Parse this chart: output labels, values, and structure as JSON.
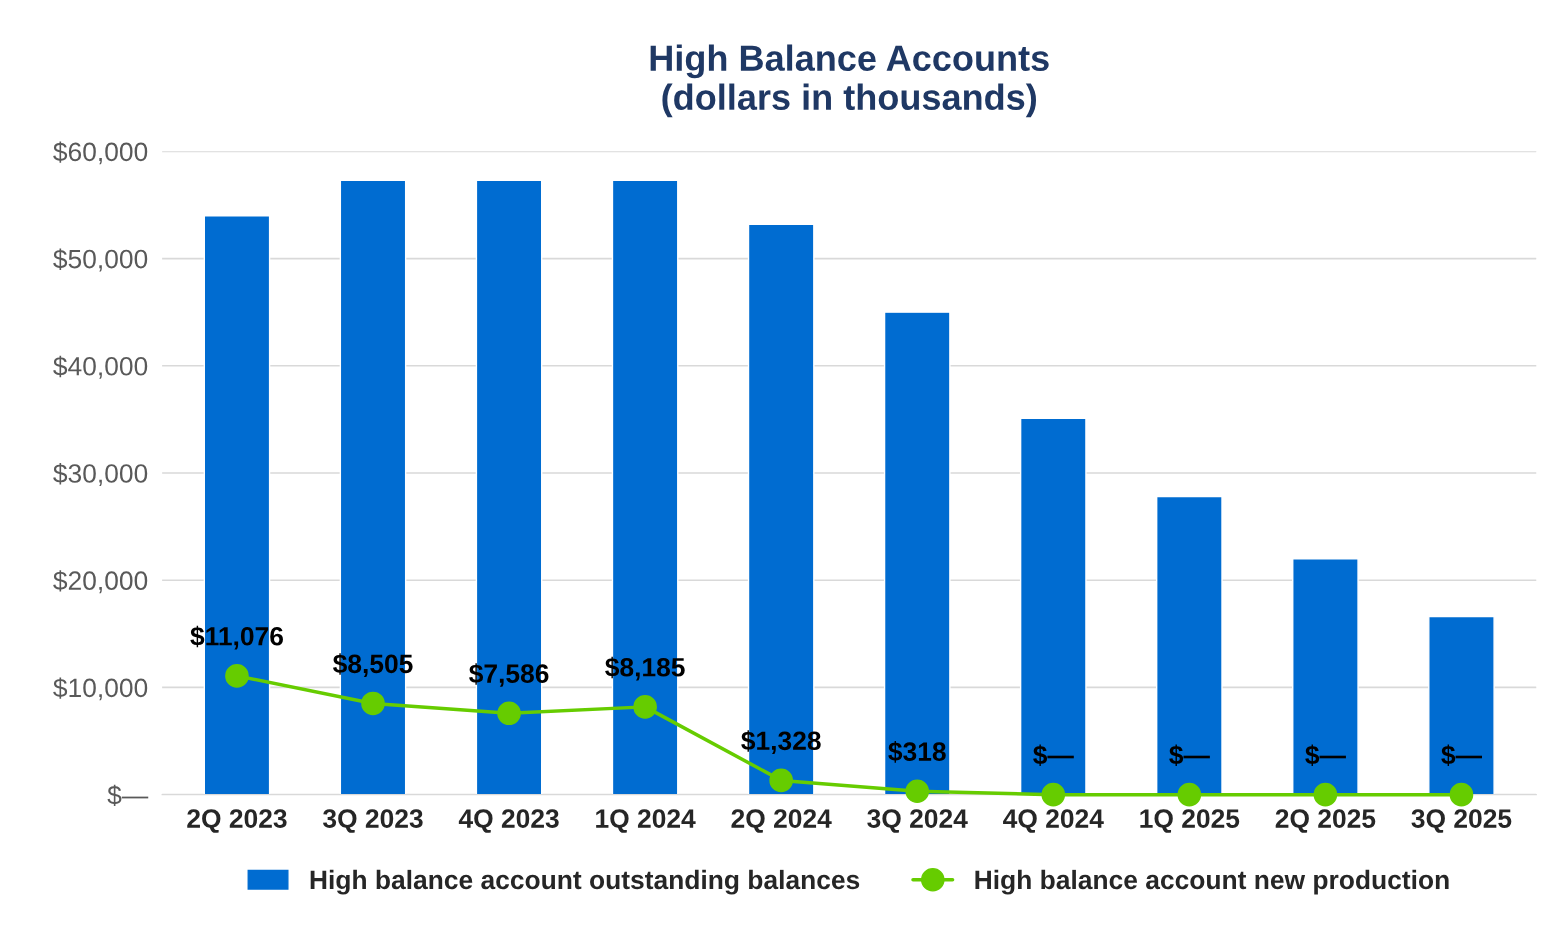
{
  "chart_data": {
    "type": "bar",
    "title": "High Balance Accounts\n(dollars in thousands)",
    "categories": [
      "2Q 2023",
      "3Q 2023",
      "4Q 2023",
      "1Q 2024",
      "2Q 2024",
      "3Q 2024",
      "4Q 2024",
      "1Q 2025",
      "2Q 2025",
      "3Q 2025"
    ],
    "series": [
      {
        "name": "High balance account outstanding balances",
        "color": "#006cd1",
        "values": [
          54000,
          57300,
          57300,
          57300,
          53200,
          45000,
          35100,
          27800,
          22000,
          16600
        ]
      },
      {
        "name": "High balance account new production",
        "type": "line",
        "color": "#66cc00",
        "marker": "circle",
        "values": [
          11076,
          8505,
          7586,
          8185,
          1328,
          318,
          0,
          0,
          0,
          0
        ],
        "value_labels": [
          "$11,076",
          "$8,505",
          "$7,586",
          "$8,185",
          "$1,328",
          "$318",
          "$—",
          "$—",
          "$—",
          "$—"
        ]
      }
    ],
    "ylim": [
      0,
      60000
    ],
    "yticks": [
      {
        "value": 0,
        "label": "$—"
      },
      {
        "value": 10000,
        "label": "$10,000"
      },
      {
        "value": 20000,
        "label": "$20,000"
      },
      {
        "value": 30000,
        "label": "$30,000"
      },
      {
        "value": 40000,
        "label": "$40,000"
      },
      {
        "value": 50000,
        "label": "$50,000"
      },
      {
        "value": 60000,
        "label": "$60,000"
      }
    ],
    "grid": "y",
    "legend": "bottom"
  }
}
